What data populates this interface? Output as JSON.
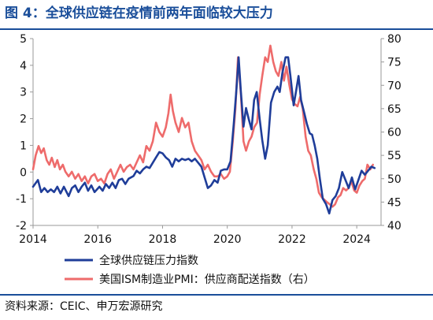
{
  "title": "图 4：全球供应链在疫情前两年面临较大压力",
  "source": "资料来源：CEIC、申万宏源研究",
  "colors": {
    "title": "#1a4e9a",
    "series_gscpi": "#1f3d99",
    "series_ism": "#ee6b6b",
    "axis": "#999999"
  },
  "chart_data": {
    "type": "line",
    "x_ticks": [
      2014,
      2016,
      2018,
      2020,
      2022,
      2024
    ],
    "x_range": [
      2014,
      2024.75
    ],
    "y_left": {
      "range": [
        -2,
        5
      ],
      "ticks": [
        -2,
        -1,
        0,
        1,
        2,
        3,
        4,
        5
      ]
    },
    "y_right": {
      "range": [
        40,
        80
      ],
      "ticks": [
        40,
        45,
        50,
        55,
        60,
        65,
        70,
        75,
        80
      ]
    },
    "legend_placement": "bottom",
    "series": [
      {
        "name": "全球供应链压力指数",
        "axis": "left",
        "points": [
          [
            2014.0,
            -0.55
          ],
          [
            2014.15,
            -0.3
          ],
          [
            2014.25,
            -0.75
          ],
          [
            2014.35,
            -0.6
          ],
          [
            2014.45,
            -0.75
          ],
          [
            2014.55,
            -0.65
          ],
          [
            2014.65,
            -0.75
          ],
          [
            2014.75,
            -0.55
          ],
          [
            2014.85,
            -0.8
          ],
          [
            2014.95,
            -0.55
          ],
          [
            2015.1,
            -0.9
          ],
          [
            2015.2,
            -0.6
          ],
          [
            2015.3,
            -0.5
          ],
          [
            2015.4,
            -0.75
          ],
          [
            2015.5,
            -0.55
          ],
          [
            2015.6,
            -0.4
          ],
          [
            2015.7,
            -0.7
          ],
          [
            2015.8,
            -0.5
          ],
          [
            2015.9,
            -0.75
          ],
          [
            2016.05,
            -0.55
          ],
          [
            2016.15,
            -0.7
          ],
          [
            2016.25,
            -0.45
          ],
          [
            2016.35,
            -0.6
          ],
          [
            2016.45,
            -0.4
          ],
          [
            2016.55,
            -0.6
          ],
          [
            2016.65,
            -0.3
          ],
          [
            2016.75,
            -0.25
          ],
          [
            2016.85,
            -0.45
          ],
          [
            2016.95,
            -0.25
          ],
          [
            2017.1,
            -0.15
          ],
          [
            2017.2,
            0.05
          ],
          [
            2017.3,
            -0.05
          ],
          [
            2017.4,
            0.1
          ],
          [
            2017.5,
            0.2
          ],
          [
            2017.6,
            0.15
          ],
          [
            2017.7,
            0.35
          ],
          [
            2017.8,
            0.55
          ],
          [
            2017.9,
            0.75
          ],
          [
            2018.0,
            0.7
          ],
          [
            2018.1,
            0.55
          ],
          [
            2018.2,
            0.45
          ],
          [
            2018.3,
            0.2
          ],
          [
            2018.4,
            0.5
          ],
          [
            2018.5,
            0.4
          ],
          [
            2018.6,
            0.5
          ],
          [
            2018.7,
            0.45
          ],
          [
            2018.8,
            0.5
          ],
          [
            2018.9,
            0.4
          ],
          [
            2019.0,
            0.5
          ],
          [
            2019.1,
            0.35
          ],
          [
            2019.2,
            0.2
          ],
          [
            2019.3,
            -0.2
          ],
          [
            2019.4,
            -0.6
          ],
          [
            2019.5,
            -0.5
          ],
          [
            2019.6,
            -0.3
          ],
          [
            2019.7,
            -0.4
          ],
          [
            2019.8,
            0.05
          ],
          [
            2019.9,
            0.1
          ],
          [
            2020.0,
            0.1
          ],
          [
            2020.1,
            0.4
          ],
          [
            2020.2,
            1.8
          ],
          [
            2020.28,
            3.05
          ],
          [
            2020.35,
            4.3
          ],
          [
            2020.42,
            3.0
          ],
          [
            2020.5,
            1.7
          ],
          [
            2020.58,
            2.4
          ],
          [
            2020.66,
            2.0
          ],
          [
            2020.75,
            1.6
          ],
          [
            2020.83,
            2.7
          ],
          [
            2020.91,
            3.0
          ],
          [
            2021.0,
            2.0
          ],
          [
            2021.08,
            1.2
          ],
          [
            2021.17,
            0.5
          ],
          [
            2021.25,
            1.0
          ],
          [
            2021.35,
            2.6
          ],
          [
            2021.45,
            3.0
          ],
          [
            2021.55,
            3.2
          ],
          [
            2021.62,
            3.0
          ],
          [
            2021.7,
            3.7
          ],
          [
            2021.8,
            4.3
          ],
          [
            2021.88,
            4.3
          ],
          [
            2021.95,
            3.6
          ],
          [
            2022.05,
            2.5
          ],
          [
            2022.12,
            3.0
          ],
          [
            2022.2,
            3.6
          ],
          [
            2022.28,
            2.7
          ],
          [
            2022.38,
            2.2
          ],
          [
            2022.46,
            1.8
          ],
          [
            2022.55,
            1.45
          ],
          [
            2022.62,
            1.4
          ],
          [
            2022.7,
            1.0
          ],
          [
            2022.78,
            0.5
          ],
          [
            2022.86,
            -0.25
          ],
          [
            2022.95,
            -1.0
          ],
          [
            2023.05,
            -1.2
          ],
          [
            2023.15,
            -1.55
          ],
          [
            2023.25,
            -1.05
          ],
          [
            2023.35,
            -0.9
          ],
          [
            2023.45,
            -0.6
          ],
          [
            2023.55,
            0.0
          ],
          [
            2023.65,
            -0.3
          ],
          [
            2023.75,
            -0.6
          ],
          [
            2023.85,
            -0.2
          ],
          [
            2023.95,
            -0.65
          ],
          [
            2024.05,
            -0.3
          ],
          [
            2024.15,
            0.05
          ],
          [
            2024.25,
            -0.1
          ],
          [
            2024.35,
            0.05
          ],
          [
            2024.45,
            0.2
          ],
          [
            2024.55,
            0.15
          ]
        ]
      },
      {
        "name": "美国ISM制造业PMI：供应商配送指数（右）",
        "axis": "right",
        "points": [
          [
            2014.0,
            52.0
          ],
          [
            2014.08,
            55.0
          ],
          [
            2014.17,
            57.0
          ],
          [
            2014.25,
            55.5
          ],
          [
            2014.33,
            56.5
          ],
          [
            2014.42,
            54.0
          ],
          [
            2014.5,
            53.0
          ],
          [
            2014.58,
            54.5
          ],
          [
            2014.67,
            52.5
          ],
          [
            2014.75,
            54.0
          ],
          [
            2014.83,
            52.0
          ],
          [
            2014.92,
            53.0
          ],
          [
            2015.0,
            51.5
          ],
          [
            2015.1,
            50.5
          ],
          [
            2015.2,
            51.5
          ],
          [
            2015.3,
            50.0
          ],
          [
            2015.4,
            51.0
          ],
          [
            2015.5,
            49.5
          ],
          [
            2015.6,
            50.5
          ],
          [
            2015.7,
            49.0
          ],
          [
            2015.8,
            50.5
          ],
          [
            2015.9,
            51.0
          ],
          [
            2016.0,
            49.5
          ],
          [
            2016.1,
            50.0
          ],
          [
            2016.2,
            49.0
          ],
          [
            2016.3,
            51.0
          ],
          [
            2016.4,
            52.0
          ],
          [
            2016.5,
            50.0
          ],
          [
            2016.6,
            51.5
          ],
          [
            2016.7,
            53.0
          ],
          [
            2016.8,
            51.5
          ],
          [
            2016.9,
            52.5
          ],
          [
            2017.0,
            53.0
          ],
          [
            2017.1,
            52.0
          ],
          [
            2017.2,
            53.5
          ],
          [
            2017.3,
            55.0
          ],
          [
            2017.4,
            53.5
          ],
          [
            2017.5,
            57.0
          ],
          [
            2017.6,
            56.0
          ],
          [
            2017.7,
            58.0
          ],
          [
            2017.8,
            62.0
          ],
          [
            2017.9,
            60.0
          ],
          [
            2018.0,
            59.0
          ],
          [
            2018.1,
            61.0
          ],
          [
            2018.18,
            64.0
          ],
          [
            2018.25,
            68.0
          ],
          [
            2018.32,
            64.5
          ],
          [
            2018.4,
            62.0
          ],
          [
            2018.5,
            60.0
          ],
          [
            2018.6,
            63.0
          ],
          [
            2018.7,
            61.0
          ],
          [
            2018.8,
            62.0
          ],
          [
            2018.9,
            58.0
          ],
          [
            2019.0,
            56.0
          ],
          [
            2019.1,
            55.0
          ],
          [
            2019.2,
            54.0
          ],
          [
            2019.3,
            52.0
          ],
          [
            2019.4,
            53.0
          ],
          [
            2019.5,
            51.5
          ],
          [
            2019.6,
            50.5
          ],
          [
            2019.7,
            50.5
          ],
          [
            2019.8,
            51.0
          ],
          [
            2019.9,
            50.0
          ],
          [
            2020.0,
            50.5
          ],
          [
            2020.08,
            51.5
          ],
          [
            2020.17,
            58.0
          ],
          [
            2020.25,
            65.0
          ],
          [
            2020.33,
            76.0
          ],
          [
            2020.42,
            68.0
          ],
          [
            2020.5,
            58.0
          ],
          [
            2020.58,
            56.0
          ],
          [
            2020.67,
            58.0
          ],
          [
            2020.75,
            59.0
          ],
          [
            2020.83,
            61.0
          ],
          [
            2020.92,
            62.0
          ],
          [
            2021.0,
            68.0
          ],
          [
            2021.08,
            72.0
          ],
          [
            2021.17,
            76.0
          ],
          [
            2021.25,
            75.0
          ],
          [
            2021.33,
            78.5
          ],
          [
            2021.42,
            75.0
          ],
          [
            2021.5,
            73.0
          ],
          [
            2021.58,
            72.0
          ],
          [
            2021.67,
            75.0
          ],
          [
            2021.75,
            71.0
          ],
          [
            2021.83,
            74.0
          ],
          [
            2021.92,
            70.0
          ],
          [
            2022.0,
            67.0
          ],
          [
            2022.08,
            66.0
          ],
          [
            2022.17,
            65.5
          ],
          [
            2022.25,
            67.5
          ],
          [
            2022.33,
            65.0
          ],
          [
            2022.42,
            59.0
          ],
          [
            2022.5,
            56.0
          ],
          [
            2022.58,
            55.0
          ],
          [
            2022.67,
            52.0
          ],
          [
            2022.75,
            50.0
          ],
          [
            2022.83,
            47.0
          ],
          [
            2022.92,
            46.0
          ],
          [
            2023.0,
            45.5
          ],
          [
            2023.08,
            45.0
          ],
          [
            2023.17,
            44.5
          ],
          [
            2023.25,
            44.0
          ],
          [
            2023.33,
            44.5
          ],
          [
            2023.42,
            46.0
          ],
          [
            2023.5,
            46.5
          ],
          [
            2023.58,
            48.0
          ],
          [
            2023.67,
            47.5
          ],
          [
            2023.75,
            48.0
          ],
          [
            2023.83,
            49.5
          ],
          [
            2023.92,
            47.5
          ],
          [
            2024.0,
            47.0
          ],
          [
            2024.08,
            48.5
          ],
          [
            2024.17,
            49.5
          ],
          [
            2024.25,
            50.0
          ],
          [
            2024.33,
            53.0
          ],
          [
            2024.42,
            52.0
          ],
          [
            2024.5,
            53.0
          ]
        ]
      }
    ]
  }
}
